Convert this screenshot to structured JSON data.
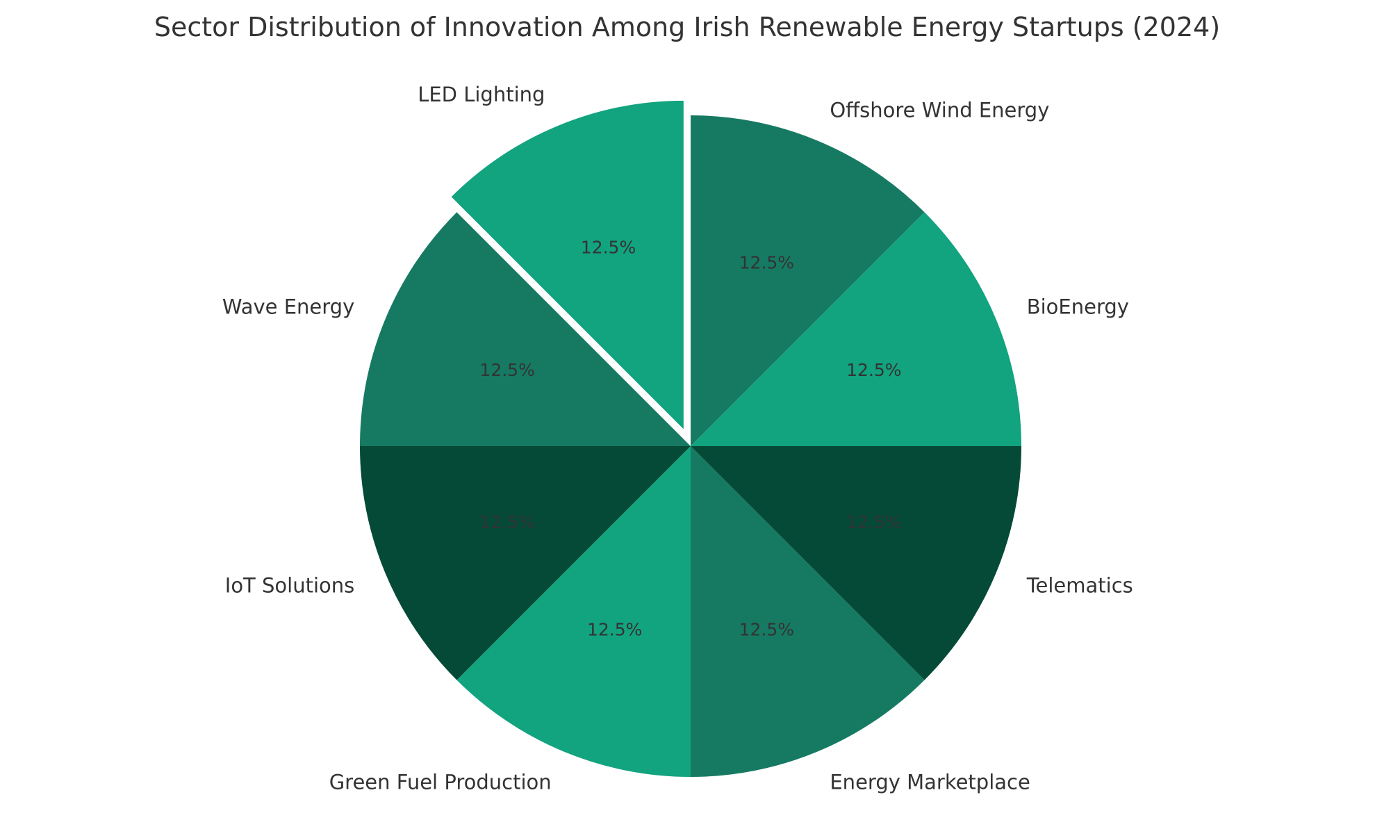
{
  "chart_data": {
    "type": "pie",
    "title": "Sector Distribution of Innovation Among Irish Renewable Energy Startups (2024)",
    "slices": [
      {
        "label": "Offshore Wind Energy",
        "value": 12.5,
        "pct_label": "12.5%",
        "color": "#167a62",
        "explode": false
      },
      {
        "label": "BioEnergy",
        "value": 12.5,
        "pct_label": "12.5%",
        "color": "#12a37f",
        "explode": false
      },
      {
        "label": "Telematics",
        "value": 12.5,
        "pct_label": "12.5%",
        "color": "#044a36",
        "explode": false
      },
      {
        "label": "Energy Marketplace",
        "value": 12.5,
        "pct_label": "12.5%",
        "color": "#167a62",
        "explode": false
      },
      {
        "label": "Green Fuel Production",
        "value": 12.5,
        "pct_label": "12.5%",
        "color": "#12a37f",
        "explode": false
      },
      {
        "label": "IoT Solutions",
        "value": 12.5,
        "pct_label": "12.5%",
        "color": "#044a36",
        "explode": false
      },
      {
        "label": "Wave Energy",
        "value": 12.5,
        "pct_label": "12.5%",
        "color": "#167a62",
        "explode": false
      },
      {
        "label": "LED Lighting",
        "value": 12.5,
        "pct_label": "12.5%",
        "color": "#12a37f",
        "explode": true
      }
    ],
    "start_direction": "top",
    "direction": "clockwise",
    "legend": "none"
  }
}
